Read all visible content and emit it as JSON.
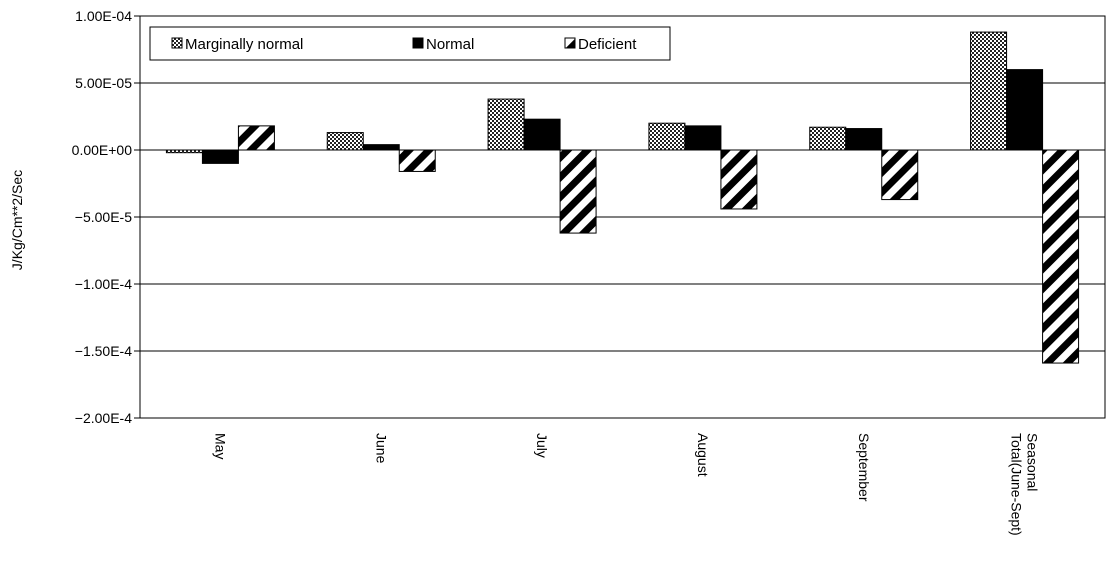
{
  "chart_data": {
    "type": "bar",
    "ylabel": "J/Kg/Cm**2/Sec",
    "ylim": [
      -0.0002,
      0.0001
    ],
    "ytick_values": [
      0.0001,
      5e-05,
      0,
      -5e-05,
      -0.0001,
      -0.00015,
      -0.0002
    ],
    "ytick_labels": [
      "1.00E-04",
      "5.00E-05",
      "0.00E+00",
      "−5.00E-5",
      "−1.00E-4",
      "−1.50E-4",
      "−2.00E-4"
    ],
    "categories": [
      [
        "May"
      ],
      [
        "June"
      ],
      [
        "July"
      ],
      [
        "August"
      ],
      [
        "September"
      ],
      [
        "Seasonal",
        "Total(June-Sept)"
      ]
    ],
    "series": [
      {
        "name": "Marginally normal",
        "pattern": "checker",
        "values": [
          -2e-06,
          1.3e-05,
          3.8e-05,
          2e-05,
          1.7e-05,
          8.8e-05
        ]
      },
      {
        "name": "Normal",
        "pattern": "solid",
        "values": [
          -1e-05,
          4e-06,
          2.3e-05,
          1.8e-05,
          1.6e-05,
          6e-05
        ]
      },
      {
        "name": "Deficient",
        "pattern": "hatch",
        "values": [
          1.8e-05,
          -1.6e-05,
          -6.2e-05,
          -4.4e-05,
          -3.7e-05,
          -0.000159
        ]
      }
    ],
    "grid": true,
    "legend_position": "top-left"
  }
}
